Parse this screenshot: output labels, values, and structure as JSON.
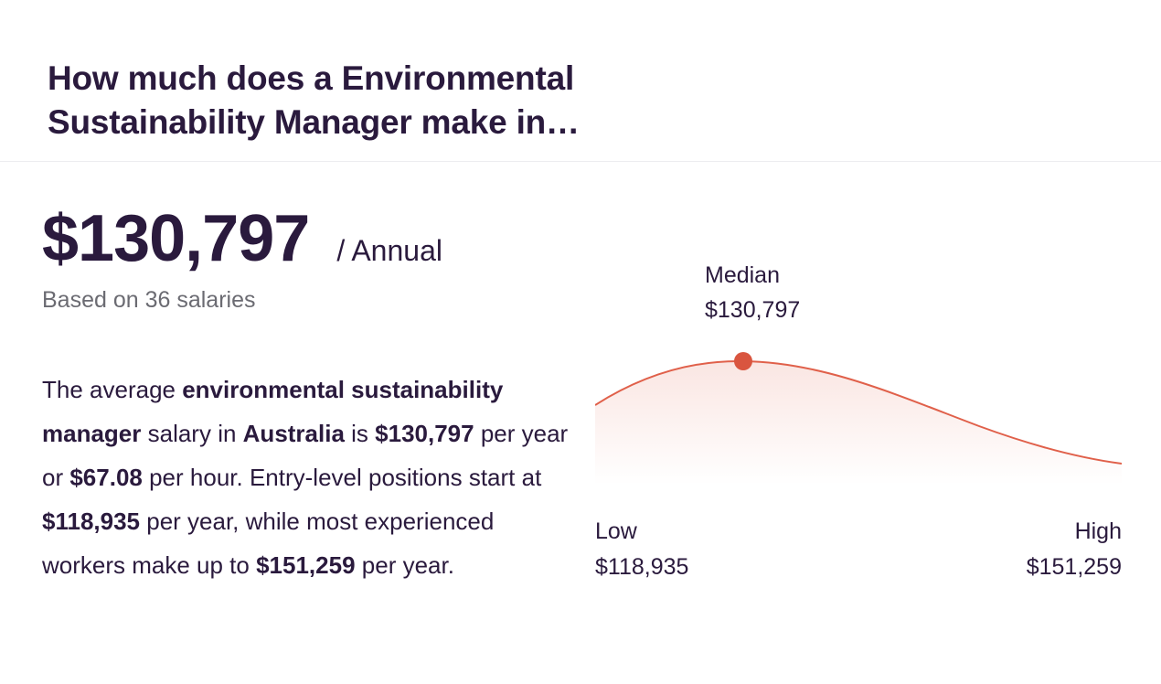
{
  "header": {
    "title": "How much does a Environmental Sustainability Manager make in…"
  },
  "salary": {
    "amount": "$130,797",
    "period": "/ Annual",
    "based_on": "Based on 36 salaries"
  },
  "description": {
    "t1": "The average ",
    "b1": "environmental sustainability manager",
    "t2": " salary in ",
    "b2": "Australia",
    "t3": " is ",
    "b3": "$130,797",
    "t4": " per year or ",
    "b4": "$67.08",
    "t5": " per hour. Entry-level positions start at ",
    "b5": "$118,935",
    "t6": " per year, while most experienced workers make up to ",
    "b6": "$151,259",
    "t7": " per year."
  },
  "chart": {
    "median_label": "Median",
    "median_value": "$130,797",
    "low_label": "Low",
    "low_value": "$118,935",
    "high_label": "High",
    "high_value": "$151,259",
    "curve_color": "#e0604a",
    "marker_color": "#d9553f"
  }
}
